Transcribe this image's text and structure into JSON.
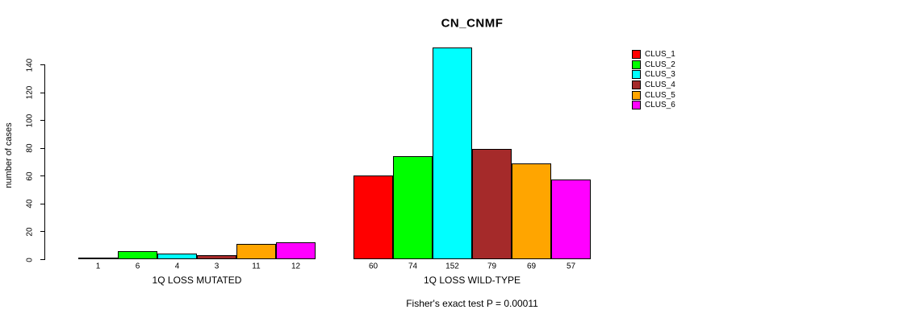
{
  "chart_data": {
    "type": "bar",
    "title": "CN_CNMF",
    "ylabel": "number of cases",
    "ylim": [
      0,
      140
    ],
    "yticks": [
      0,
      20,
      40,
      60,
      80,
      100,
      120,
      140
    ],
    "grid": false,
    "legend_position": "right",
    "series": [
      {
        "name": "CLUS_1",
        "color": "#FF0000"
      },
      {
        "name": "CLUS_2",
        "color": "#00FF00"
      },
      {
        "name": "CLUS_3",
        "color": "#00FFFF"
      },
      {
        "name": "CLUS_4",
        "color": "#A52A2A"
      },
      {
        "name": "CLUS_5",
        "color": "#FFA500"
      },
      {
        "name": "CLUS_6",
        "color": "#FF00FF"
      }
    ],
    "groups": [
      {
        "label": "1Q LOSS MUTATED",
        "values": [
          1,
          6,
          4,
          3,
          11,
          12
        ]
      },
      {
        "label": "1Q LOSS WILD-TYPE",
        "values": [
          60,
          74,
          152,
          79,
          69,
          57
        ]
      }
    ],
    "annotation": "Fisher's exact test P = 0.00011"
  }
}
